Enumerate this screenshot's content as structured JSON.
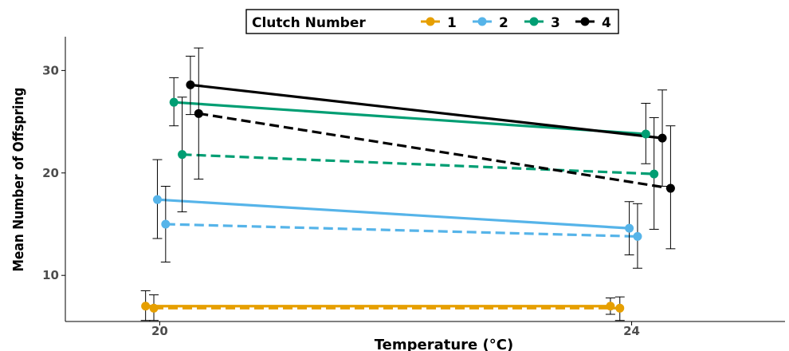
{
  "chart_data": {
    "type": "line",
    "xlabel": "Temperature (°C)",
    "ylabel": "Mean Number of Offspring",
    "x_ticks": [
      "20",
      "24"
    ],
    "y_ticks": [
      10,
      20,
      30
    ],
    "xlim": [
      19.2,
      25.3
    ],
    "ylim": [
      5.5,
      33.3
    ],
    "grid": false,
    "legend": {
      "title": "Clutch Number",
      "position": "top",
      "entries": [
        "1",
        "2",
        "3",
        "4"
      ]
    },
    "series": [
      {
        "name": "1",
        "linetype": "solid",
        "color": "#E69F00",
        "points": [
          {
            "x": 19.88,
            "y": 7.0,
            "lo": 5.6,
            "hi": 8.5
          },
          {
            "x": 23.82,
            "y": 7.0,
            "lo": 6.2,
            "hi": 7.8
          }
        ]
      },
      {
        "name": "1",
        "linetype": "dashed",
        "color": "#E69F00",
        "points": [
          {
            "x": 19.95,
            "y": 6.8,
            "lo": 5.6,
            "hi": 8.1
          },
          {
            "x": 23.9,
            "y": 6.8,
            "lo": 5.6,
            "hi": 7.9
          }
        ]
      },
      {
        "name": "2",
        "linetype": "solid",
        "color": "#56B4E9",
        "points": [
          {
            "x": 19.98,
            "y": 17.4,
            "lo": 13.6,
            "hi": 21.3
          },
          {
            "x": 23.98,
            "y": 14.6,
            "lo": 12.0,
            "hi": 17.2
          }
        ]
      },
      {
        "name": "2",
        "linetype": "dashed",
        "color": "#56B4E9",
        "points": [
          {
            "x": 20.05,
            "y": 15.0,
            "lo": 11.3,
            "hi": 18.7
          },
          {
            "x": 24.05,
            "y": 13.8,
            "lo": 10.7,
            "hi": 17.0
          }
        ]
      },
      {
        "name": "3",
        "linetype": "solid",
        "color": "#009E73",
        "points": [
          {
            "x": 20.12,
            "y": 26.9,
            "lo": 24.6,
            "hi": 29.3
          },
          {
            "x": 24.12,
            "y": 23.8,
            "lo": 20.9,
            "hi": 26.8
          }
        ]
      },
      {
        "name": "3",
        "linetype": "dashed",
        "color": "#009E73",
        "points": [
          {
            "x": 20.19,
            "y": 21.8,
            "lo": 16.2,
            "hi": 27.4
          },
          {
            "x": 24.19,
            "y": 19.9,
            "lo": 14.5,
            "hi": 25.4
          }
        ]
      },
      {
        "name": "4",
        "linetype": "solid",
        "color": "#000000",
        "points": [
          {
            "x": 20.26,
            "y": 28.6,
            "lo": 25.7,
            "hi": 31.4
          },
          {
            "x": 24.26,
            "y": 23.4,
            "lo": 18.7,
            "hi": 28.1
          }
        ]
      },
      {
        "name": "4",
        "linetype": "dashed",
        "color": "#000000",
        "points": [
          {
            "x": 20.33,
            "y": 25.8,
            "lo": 19.4,
            "hi": 32.2
          },
          {
            "x": 24.33,
            "y": 18.5,
            "lo": 12.6,
            "hi": 24.6
          }
        ]
      }
    ]
  }
}
